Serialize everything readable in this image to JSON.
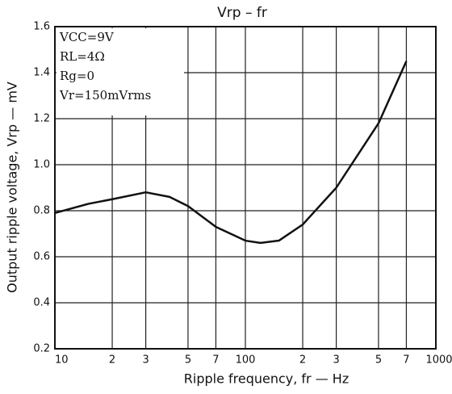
{
  "chart_data": {
    "type": "line",
    "title": "Vrp  –  fr",
    "xlabel": "Ripple frequency, fr — Hz",
    "ylabel": "Output ripple voltage, Vrp — mV",
    "annotations": [
      "VCC=9V",
      "RL=4Ω",
      "Rg=0",
      "Vr=150mVrms"
    ],
    "xscale": "log",
    "grid": true,
    "x": [
      10,
      15,
      20,
      30,
      40,
      50,
      70,
      100,
      120,
      150,
      200,
      300,
      500,
      700
    ],
    "series": [
      {
        "name": "Vrp",
        "color": "#111111",
        "values": [
          0.79,
          0.83,
          0.85,
          0.88,
          0.86,
          0.82,
          0.73,
          0.67,
          0.66,
          0.67,
          0.74,
          0.9,
          1.18,
          1.45
        ]
      }
    ],
    "xlim": [
      10,
      1000
    ],
    "xticks": [
      10,
      {
        "value": 20,
        "label": "2"
      },
      {
        "value": 30,
        "label": "3"
      },
      {
        "value": 50,
        "label": "5"
      },
      {
        "value": 70,
        "label": "7"
      },
      100,
      {
        "value": 200,
        "label": "2"
      },
      {
        "value": 300,
        "label": "3"
      },
      {
        "value": 500,
        "label": "5"
      },
      {
        "value": 700,
        "label": "7"
      },
      1000
    ],
    "ylim": [
      0.2,
      1.6
    ],
    "yticks": [
      0.2,
      0.4,
      0.6,
      0.8,
      {
        "value": 1.0,
        "label": "1.0"
      },
      1.2,
      1.4,
      1.6
    ]
  }
}
